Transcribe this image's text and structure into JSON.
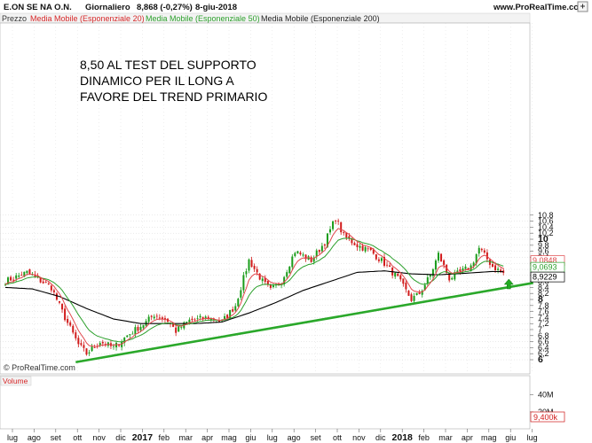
{
  "header": {
    "symbol": "E.ON SE NA O.N.",
    "period": "Giornaliero",
    "quote": "8,868 (-0,27%)",
    "date": "8-giu-2018",
    "site": "www.ProRealTime.com"
  },
  "legend": {
    "price": "Prezzo",
    "ma20": "Media Mobile (Esponenziale 20)",
    "ma50": "Media Mobile (Esponenziale 50)",
    "ma200": "Media Mobile (Esponenziale 200)"
  },
  "annotation": {
    "line1": "8,50 AL TEST DEL SUPPORTO",
    "line2": "DINAMICO PER IL LONG A",
    "line3": "FAVORE DEL TREND PRIMARIO"
  },
  "watermark": "© ProRealTime.com",
  "volume_label": "Volume",
  "colors": {
    "up": "#1a9c1a",
    "down": "#d11b1b",
    "ma20": "#e0474c",
    "ma50": "#2ca02c",
    "ma200": "#000000",
    "trendline": "#2aa82a",
    "grid": "#d6d6d6"
  },
  "chart_data": {
    "type": "candlestick",
    "x_labels": [
      "lug",
      "ago",
      "set",
      "ott",
      "nov",
      "dic",
      "2017",
      "feb",
      "mar",
      "apr",
      "mag",
      "giu",
      "lug",
      "ago",
      "set",
      "ott",
      "nov",
      "dic",
      "2018",
      "feb",
      "mar",
      "apr",
      "mag",
      "giu",
      "lug"
    ],
    "y_ticks": [
      "6",
      "6,2",
      "6,4",
      "6,6",
      "6,8",
      "7",
      "7,2",
      "7,4",
      "7,6",
      "7,8",
      "8",
      "8,2",
      "8,4",
      "8,6",
      "8,8",
      "9",
      "9,2",
      "9,4",
      "9,6",
      "9,8",
      "10",
      "10,2",
      "10,4",
      "10,6",
      "10,8"
    ],
    "ylim": [
      5.95,
      11.0
    ],
    "price_labels": {
      "ma20": "9,0848",
      "ma50": "9,0693",
      "ma200": "8,9229"
    },
    "volume_ticks": [
      "40M",
      "20M"
    ],
    "volume_last": "9,400k",
    "close_path": [
      [
        0,
        8.6
      ],
      [
        8,
        8.9
      ],
      [
        17,
        8.4
      ],
      [
        22,
        7.4
      ],
      [
        27,
        6.5
      ],
      [
        30,
        6.2
      ],
      [
        35,
        6.6
      ],
      [
        40,
        6.4
      ],
      [
        45,
        6.8
      ],
      [
        52,
        7.25
      ],
      [
        55,
        7.5
      ],
      [
        60,
        7.3
      ],
      [
        63,
        6.95
      ],
      [
        68,
        7.3
      ],
      [
        75,
        7.4
      ],
      [
        80,
        7.25
      ],
      [
        85,
        7.8
      ],
      [
        90,
        9.3
      ],
      [
        95,
        8.6
      ],
      [
        98,
        8.3
      ],
      [
        102,
        8.6
      ],
      [
        107,
        9.6
      ],
      [
        113,
        9.3
      ],
      [
        118,
        9.9
      ],
      [
        122,
        10.7
      ],
      [
        125,
        10.1
      ],
      [
        130,
        9.8
      ],
      [
        135,
        9.6
      ],
      [
        140,
        9.2
      ],
      [
        145,
        8.7
      ],
      [
        150,
        8.0
      ],
      [
        153,
        8.2
      ],
      [
        157,
        8.8
      ],
      [
        160,
        9.5
      ],
      [
        164,
        8.7
      ],
      [
        168,
        8.9
      ],
      [
        172,
        9.1
      ],
      [
        175,
        9.7
      ],
      [
        180,
        9.1
      ],
      [
        184,
        8.87
      ]
    ],
    "ma200_path": [
      [
        0,
        8.4
      ],
      [
        10,
        8.35
      ],
      [
        20,
        8.1
      ],
      [
        30,
        7.7
      ],
      [
        40,
        7.35
      ],
      [
        50,
        7.2
      ],
      [
        60,
        7.2
      ],
      [
        70,
        7.2
      ],
      [
        80,
        7.25
      ],
      [
        90,
        7.55
      ],
      [
        100,
        7.9
      ],
      [
        110,
        8.3
      ],
      [
        120,
        8.6
      ],
      [
        130,
        8.9
      ],
      [
        140,
        8.95
      ],
      [
        150,
        8.85
      ],
      [
        160,
        8.82
      ],
      [
        170,
        8.87
      ],
      [
        180,
        8.93
      ],
      [
        184,
        8.92
      ]
    ],
    "trendline": {
      "from": [
        26,
        5.92
      ],
      "to": [
        195,
        8.55
      ]
    },
    "signal_arrow": {
      "index": 186,
      "value": 8.5
    }
  }
}
